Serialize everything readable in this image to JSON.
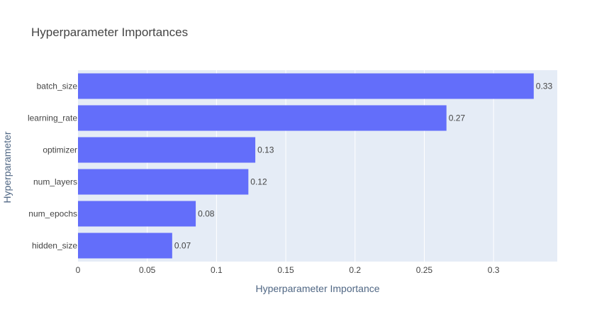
{
  "chart_data": {
    "type": "bar",
    "orientation": "horizontal",
    "title": "Hyperparameter Importances",
    "xlabel": "Hyperparameter Importance",
    "ylabel": "Hyperparameter",
    "categories": [
      "batch_size",
      "learning_rate",
      "optimizer",
      "num_layers",
      "num_epochs",
      "hidden_size"
    ],
    "values": [
      0.329,
      0.266,
      0.128,
      0.123,
      0.085,
      0.068
    ],
    "value_labels": [
      "0.33",
      "0.27",
      "0.13",
      "0.12",
      "0.08",
      "0.07"
    ],
    "xlim": [
      0,
      0.346
    ],
    "xticks": [
      0,
      0.05,
      0.1,
      0.15,
      0.2,
      0.25,
      0.3
    ],
    "xtick_labels": [
      "0",
      "0.05",
      "0.1",
      "0.15",
      "0.2",
      "0.25",
      "0.3"
    ],
    "grid": true,
    "legend": "none",
    "colors": {
      "bar": "#636efa",
      "plot_background": "#e5ecf6",
      "gridline": "#ffffff"
    }
  }
}
